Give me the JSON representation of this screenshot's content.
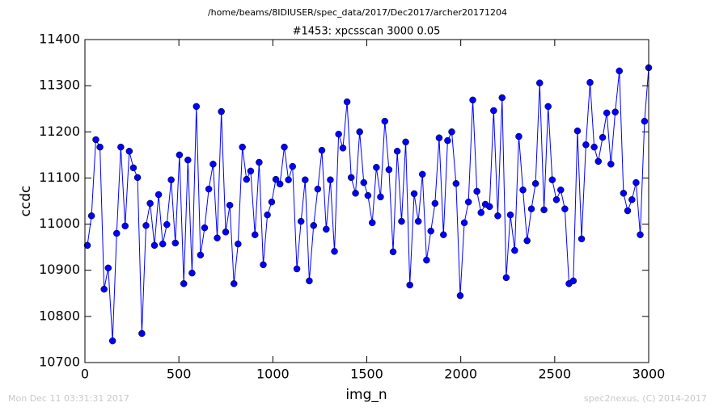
{
  "chart_data": {
    "type": "line",
    "suptitle": "/home/beams/8IDIUSER/spec_data/2017/Dec2017/archer20171204",
    "title": "#1453: xpcsscan 3000 0.05",
    "x_label": "img_n",
    "y_label": "ccdc",
    "timestamp": "Mon Dec 11 03:31:31 2017",
    "credit": "spec2nexus, (C) 2014-2017",
    "color": "#0000ff",
    "marker": "circle",
    "xlim": [
      0,
      3000
    ],
    "xticks": [
      0,
      500,
      1000,
      1500,
      2000,
      2500,
      3000
    ],
    "ylim": [
      10700,
      11400
    ],
    "yticks": [
      10700,
      10800,
      10900,
      11000,
      11100,
      11200,
      11300,
      11400
    ],
    "x": [
      13,
      35,
      58,
      80,
      102,
      124,
      147,
      169,
      191,
      214,
      236,
      258,
      280,
      303,
      325,
      347,
      370,
      392,
      414,
      436,
      459,
      481,
      503,
      526,
      548,
      570,
      593,
      615,
      637,
      659,
      682,
      704,
      726,
      749,
      771,
      793,
      815,
      838,
      860,
      882,
      905,
      927,
      949,
      971,
      994,
      1016,
      1038,
      1061,
      1083,
      1105,
      1128,
      1150,
      1172,
      1194,
      1217,
      1239,
      1261,
      1284,
      1306,
      1328,
      1350,
      1373,
      1395,
      1417,
      1440,
      1462,
      1484,
      1506,
      1529,
      1551,
      1573,
      1596,
      1618,
      1640,
      1662,
      1685,
      1707,
      1729,
      1752,
      1774,
      1796,
      1818,
      1841,
      1863,
      1885,
      1908,
      1930,
      1952,
      1975,
      1997,
      2019,
      2041,
      2064,
      2086,
      2108,
      2131,
      2153,
      2175,
      2197,
      2220,
      2242,
      2264,
      2287,
      2309,
      2331,
      2353,
      2376,
      2398,
      2420,
      2443,
      2465,
      2487,
      2509,
      2532,
      2554,
      2576,
      2599,
      2621,
      2643,
      2666,
      2688,
      2710,
      2732,
      2755,
      2777,
      2799,
      2822,
      2844,
      2866,
      2888,
      2911,
      2933,
      2955,
      2978,
      3000
    ],
    "values": [
      10954,
      11018,
      11183,
      11167,
      10859,
      10905,
      10747,
      10980,
      11167,
      10996,
      11158,
      11122,
      11101,
      10763,
      10997,
      11045,
      10954,
      11064,
      10957,
      10999,
      11096,
      10959,
      11150,
      10871,
      11139,
      10894,
      11255,
      10933,
      10992,
      11076,
      11130,
      10970,
      11244,
      10983,
      11041,
      10871,
      10957,
      11167,
      11097,
      11115,
      10977,
      11134,
      10912,
      11020,
      11048,
      11097,
      11087,
      11167,
      11096,
      11125,
      10903,
      11006,
      11096,
      10877,
      10997,
      11076,
      11160,
      10989,
      11096,
      10941,
      11195,
      11165,
      11265,
      11101,
      11067,
      11200,
      11090,
      11062,
      11003,
      11123,
      11059,
      11223,
      11118,
      10940,
      11158,
      11006,
      11178,
      10868,
      11066,
      11006,
      11108,
      10922,
      10985,
      11045,
      11187,
      10977,
      11181,
      11200,
      11088,
      10845,
      11003,
      11048,
      11269,
      11071,
      11025,
      11043,
      11038,
      11246,
      11018,
      11274,
      10884,
      11020,
      10943,
      11190,
      11074,
      10964,
      11033,
      11088,
      11306,
      11031,
      11255,
      11096,
      11053,
      11074,
      11033,
      10871,
      10877,
      11202,
      10968,
      11172,
      11307,
      11167,
      11136,
      11188,
      11241,
      11130,
      11243,
      11332,
      11067,
      11029,
      11053,
      11090,
      10977,
      11223,
      11339
    ]
  }
}
